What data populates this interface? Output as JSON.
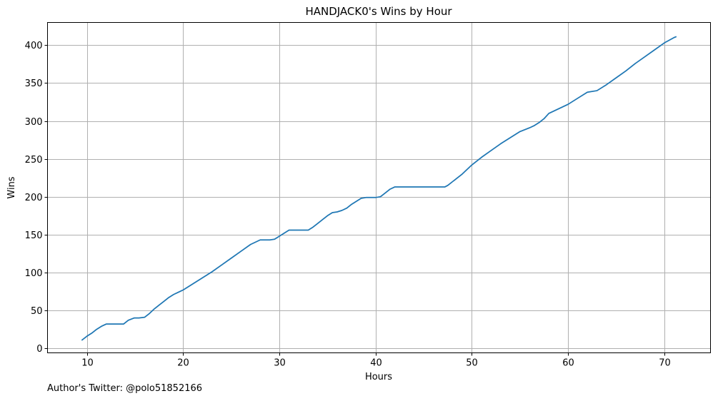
{
  "chart_data": {
    "type": "line",
    "title": "HANDJACK0's Wins by Hour",
    "xlabel": "Hours",
    "ylabel": "Wins",
    "xlim": [
      5.9,
      74.8
    ],
    "ylim": [
      -6,
      430
    ],
    "xticks": [
      10,
      20,
      30,
      40,
      50,
      60,
      70
    ],
    "yticks": [
      0,
      50,
      100,
      150,
      200,
      250,
      300,
      350,
      400
    ],
    "grid": true,
    "line_color": "#1f77b4",
    "series": [
      {
        "name": "Wins",
        "x": [
          9.5,
          10,
          10.5,
          11,
          11.5,
          12,
          12.5,
          13,
          13.8,
          14.3,
          14.9,
          15.4,
          16,
          16.5,
          17,
          17.5,
          18,
          18.5,
          19,
          19.5,
          20,
          21,
          22,
          23,
          24,
          25,
          26,
          27,
          28,
          29,
          29.5,
          30,
          30.5,
          31,
          32,
          33,
          33.5,
          34,
          34.5,
          35,
          35.5,
          36,
          36.5,
          37,
          37.5,
          38,
          38.5,
          39,
          40,
          40.5,
          41,
          41.5,
          42,
          43,
          44,
          45,
          46,
          47.2,
          47.5,
          48,
          49,
          50,
          51,
          52,
          53,
          54,
          55,
          56,
          56.5,
          57,
          57.5,
          58,
          59,
          60,
          61,
          62,
          63,
          64,
          65,
          66,
          67,
          68,
          69,
          70,
          71,
          71.2
        ],
        "values": [
          11,
          16,
          20,
          25,
          29,
          32,
          32,
          32,
          32,
          37,
          40,
          40,
          41,
          46,
          52,
          57,
          62,
          67,
          71,
          74,
          77,
          85,
          93,
          101,
          110,
          119,
          128,
          137,
          143,
          143,
          144,
          148,
          152,
          156,
          156,
          156,
          160,
          165,
          170,
          175,
          179,
          180,
          182,
          185,
          190,
          194,
          198,
          199,
          199,
          200,
          205,
          210,
          213,
          213,
          213,
          213,
          213,
          213,
          215,
          220,
          230,
          242,
          252,
          261,
          270,
          278,
          286,
          291,
          294,
          298,
          303,
          310,
          316,
          322,
          330,
          338,
          340,
          348,
          357,
          366,
          376,
          385,
          394,
          403,
          410,
          411
        ]
      }
    ]
  },
  "footer": {
    "credit": "Author's Twitter: @polo51852166"
  }
}
